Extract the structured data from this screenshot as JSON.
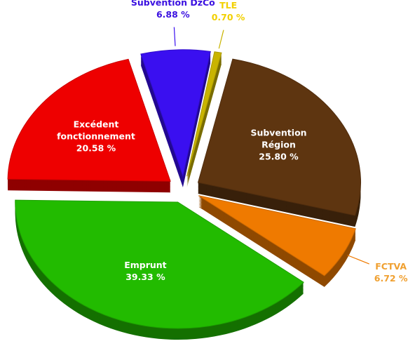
{
  "chart_data": {
    "type": "pie",
    "categories": [
      "Subvention DzCo",
      "TLE",
      "Subvention Région",
      "FCTVA",
      "Emprunt",
      "Excédent fonctionnement"
    ],
    "values": [
      6.88,
      0.7,
      25.8,
      6.72,
      39.33,
      20.58
    ],
    "value_labels": [
      "6.88 %",
      "0.70 %",
      "25.80 %",
      "6.72 %",
      "39.33 %",
      "20.58 %"
    ],
    "colors": [
      "#3a0ff0",
      "#c9b400",
      "#5e3510",
      "#ef7a00",
      "#22bb00",
      "#ee0000"
    ],
    "label_colors": [
      "#3a10e0",
      "#f2d000",
      "#ffffff",
      "#f0a030",
      "#ffffff",
      "#ffffff"
    ]
  }
}
